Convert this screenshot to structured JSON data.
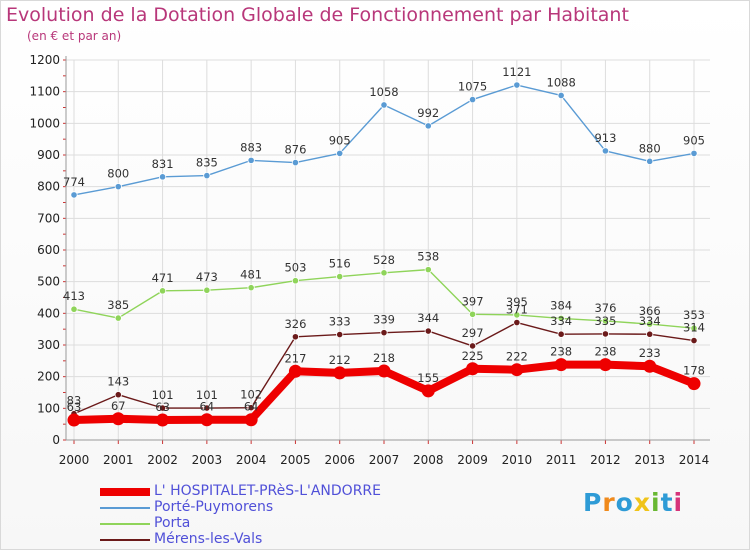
{
  "header": {
    "title": "Evolution de la Dotation Globale de Fonctionnement par Habitant",
    "subtitle": "(en € et par an)"
  },
  "logo": {
    "letters": [
      "P",
      "r",
      "o",
      "x",
      "i",
      "t",
      "i"
    ],
    "colors": [
      "#2e9bd6",
      "#f08a1c",
      "#2e9bd6",
      "#f0c419",
      "#69b832",
      "#2e9bd6",
      "#d6347a"
    ]
  },
  "chart_data": {
    "type": "line",
    "title": "Evolution de la Dotation Globale de Fonctionnement par Habitant",
    "subtitle": "(en € et par an)",
    "x": [
      "2000",
      "2001",
      "2002",
      "2003",
      "2004",
      "2005",
      "2006",
      "2007",
      "2008",
      "2009",
      "2010",
      "2011",
      "2012",
      "2013",
      "2014"
    ],
    "ylim": [
      0,
      1200
    ],
    "yticks": [
      0,
      100,
      200,
      300,
      400,
      500,
      600,
      700,
      800,
      900,
      1000,
      1100,
      1200
    ],
    "grid": true,
    "legend_position": "bottom-left",
    "series": [
      {
        "name": "L' HOSPITALET-PRèS-L'ANDORRE",
        "color": "#ee0000",
        "values": [
          63,
          67,
          63,
          64,
          64,
          217,
          212,
          218,
          155,
          225,
          222,
          238,
          238,
          233,
          178
        ],
        "labels": [
          "63",
          "67",
          "63",
          "64",
          "64",
          "217",
          "212",
          "218",
          "155",
          "225",
          "222",
          "238",
          "238",
          "233",
          "178"
        ]
      },
      {
        "name": "Porté-Puymorens",
        "color": "#5a9bd4",
        "values": [
          774,
          800,
          831,
          835,
          883,
          876,
          905,
          1058,
          992,
          1075,
          1121,
          1088,
          913,
          880,
          905
        ],
        "labels": [
          "774",
          "800",
          "831",
          "835",
          "883",
          "876",
          "905",
          "1058",
          "992",
          "1075",
          "1121",
          "1088",
          "913",
          "880",
          "905"
        ]
      },
      {
        "name": "Porta",
        "color": "#8fd45a",
        "values": [
          413,
          385,
          471,
          473,
          481,
          503,
          516,
          528,
          538,
          397,
          395,
          384,
          376,
          366,
          353
        ],
        "labels": [
          "413",
          "385",
          "471",
          "473",
          "481",
          "503",
          "516",
          "528",
          "538",
          "397",
          "395",
          "384",
          "376",
          "366",
          "353"
        ]
      },
      {
        "name": "Mérens-les-Vals",
        "color": "#6b1a1a",
        "values": [
          83,
          143,
          101,
          101,
          102,
          326,
          333,
          339,
          344,
          297,
          371,
          334,
          335,
          334,
          314
        ],
        "labels": [
          "83",
          "143",
          "101",
          "101",
          "102",
          "326",
          "333",
          "339",
          "344",
          "297",
          "371",
          "334",
          "335",
          "334",
          "314"
        ]
      }
    ]
  }
}
